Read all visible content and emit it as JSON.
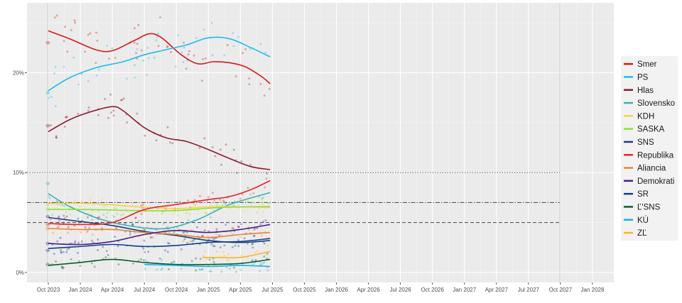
{
  "chart_data": {
    "type": "line",
    "title": "",
    "xlabel": "",
    "ylabel": "",
    "x_ticks": [
      "Oct 2023",
      "Jan 2024",
      "Apr 2024",
      "Jul 2024",
      "Oct 2024",
      "Jan 2025",
      "Apr 2025",
      "Jul 2025",
      "Oct 2025",
      "Jan 2026",
      "Apr 2026",
      "Jul 2026",
      "Oct 2026",
      "Jan 2027",
      "Apr 2027",
      "Jul 2027",
      "Oct 2027",
      "Jan 2028"
    ],
    "x_range": [
      "2023-08",
      "2028-03"
    ],
    "y_ticks": [
      "0%",
      "10%",
      "20%"
    ],
    "y_tick_values": [
      0,
      10,
      20
    ],
    "ylim": [
      -1,
      27
    ],
    "grid": true,
    "legend_position": "right",
    "reference_lines": [
      {
        "value": 10,
        "style": "dotted",
        "color": "#6e6e6e"
      },
      {
        "value": 7,
        "style": "dashdot",
        "color": "#5a5a5a"
      },
      {
        "value": 5,
        "style": "dashed",
        "color": "#5a5a5a"
      }
    ],
    "election_markers": [
      {
        "x": "2023-09-30",
        "value_note": "election"
      },
      {
        "x": "2027-09-30",
        "value_note": "election"
      }
    ],
    "series": [
      {
        "name": "Smer",
        "color": "#d7191c",
        "election_result": 23.0,
        "x": [
          "2023-10-01",
          "2023-12-01",
          "2024-02-15",
          "2024-04-01",
          "2024-06-01",
          "2024-07-15",
          "2024-08-20",
          "2024-10-15",
          "2024-12-01",
          "2025-01-15",
          "2025-03-01",
          "2025-04-15",
          "2025-06-01",
          "2025-06-25"
        ],
        "values": [
          24.2,
          23.4,
          22.3,
          22.2,
          23.2,
          23.9,
          23.5,
          21.8,
          20.9,
          21.1,
          21.0,
          20.6,
          19.6,
          18.9
        ]
      },
      {
        "name": "PS",
        "color": "#1fbce9",
        "election_result": 18.0,
        "x": [
          "2023-10-01",
          "2023-12-01",
          "2024-02-15",
          "2024-05-01",
          "2024-07-01",
          "2024-09-01",
          "2024-11-01",
          "2025-01-01",
          "2025-03-01",
          "2025-05-01",
          "2025-06-25"
        ],
        "values": [
          18.2,
          19.5,
          20.5,
          21.1,
          21.8,
          22.3,
          22.8,
          23.5,
          23.4,
          22.5,
          21.6
        ]
      },
      {
        "name": "Hlas",
        "color": "#8b1a2e",
        "election_result": 14.7,
        "x": [
          "2023-10-01",
          "2023-12-01",
          "2024-02-01",
          "2024-04-01",
          "2024-05-01",
          "2024-07-01",
          "2024-09-01",
          "2024-11-01",
          "2025-01-01",
          "2025-03-01",
          "2025-05-01",
          "2025-06-25"
        ],
        "values": [
          14.1,
          15.3,
          16.1,
          16.6,
          16.2,
          14.5,
          13.5,
          13.1,
          12.3,
          11.4,
          10.6,
          10.3
        ]
      },
      {
        "name": "Slovensko",
        "color": "#3eafb0",
        "election_result": 8.9,
        "x": [
          "2023-10-01",
          "2023-12-01",
          "2024-03-01",
          "2024-06-01",
          "2024-09-01",
          "2024-12-01",
          "2025-03-01",
          "2025-06-25"
        ],
        "values": [
          7.9,
          6.6,
          5.3,
          4.6,
          4.4,
          5.3,
          6.8,
          8.0
        ]
      },
      {
        "name": "KDH",
        "color": "#f9d33c",
        "election_result": 6.8,
        "x": [
          "2023-10-01",
          "2024-02-01",
          "2024-06-01",
          "2024-10-01",
          "2025-02-01",
          "2025-06-25"
        ],
        "values": [
          6.9,
          6.9,
          6.6,
          6.4,
          6.6,
          6.5
        ]
      },
      {
        "name": "SASKA",
        "color": "#8ae234",
        "election_result": 6.3,
        "x": [
          "2023-10-01",
          "2024-02-01",
          "2024-06-01",
          "2024-10-01",
          "2025-02-01",
          "2025-06-25"
        ],
        "values": [
          6.3,
          6.3,
          6.2,
          6.2,
          6.5,
          6.6
        ]
      },
      {
        "name": "SNS",
        "color": "#1f3f7f",
        "election_result": 5.6,
        "x": [
          "2023-10-01",
          "2024-01-01",
          "2024-04-01",
          "2024-07-01",
          "2024-10-01",
          "2025-01-01",
          "2025-04-01",
          "2025-06-25"
        ],
        "values": [
          5.5,
          5.1,
          4.7,
          4.1,
          3.7,
          3.2,
          3.0,
          3.2
        ]
      },
      {
        "name": "Republika",
        "color": "#e8232f",
        "election_result": 4.8,
        "x": [
          "2023-10-01",
          "2024-01-01",
          "2024-04-01",
          "2024-07-01",
          "2024-10-01",
          "2025-01-01",
          "2025-03-01",
          "2025-05-01",
          "2025-06-25"
        ],
        "values": [
          4.9,
          4.8,
          5.0,
          6.3,
          6.8,
          7.3,
          7.6,
          8.3,
          9.2
        ]
      },
      {
        "name": "Aliancia",
        "color": "#e8862f",
        "election_result": 4.4,
        "x": [
          "2023-10-01",
          "2024-01-01",
          "2024-04-01",
          "2024-07-01",
          "2024-10-01",
          "2025-01-01",
          "2025-04-01",
          "2025-06-25"
        ],
        "values": [
          4.4,
          4.3,
          4.3,
          4.0,
          3.8,
          3.5,
          3.8,
          4.0
        ]
      },
      {
        "name": "Demokrati",
        "color": "#4a1a8c",
        "election_result": 2.9,
        "x": [
          "2023-10-01",
          "2024-01-01",
          "2024-04-01",
          "2024-07-01",
          "2024-10-01",
          "2025-01-01",
          "2025-04-01",
          "2025-06-25"
        ],
        "values": [
          2.9,
          2.8,
          3.1,
          3.8,
          4.2,
          4.0,
          4.3,
          4.8
        ]
      },
      {
        "name": "SR",
        "color": "#0d3f8a",
        "election_result": 2.2,
        "x": [
          "2023-10-01",
          "2024-01-01",
          "2024-04-01",
          "2024-07-01",
          "2024-10-01",
          "2025-01-01",
          "2025-04-01",
          "2025-06-25"
        ],
        "values": [
          2.4,
          2.6,
          2.8,
          2.6,
          2.7,
          3.0,
          3.1,
          3.4
        ]
      },
      {
        "name": "Ľ'SNS",
        "color": "#0a5c2a",
        "election_result": 0.8,
        "x": [
          "2023-10-01",
          "2024-01-01",
          "2024-04-01",
          "2024-07-01",
          "2024-10-01",
          "2025-01-01",
          "2025-04-01",
          "2025-06-25"
        ],
        "values": [
          0.7,
          1.0,
          1.3,
          1.0,
          0.8,
          0.8,
          0.9,
          1.3
        ]
      },
      {
        "name": "KÚ",
        "color": "#1faee0",
        "election_result": null,
        "x": [
          "2024-07-01",
          "2024-10-01",
          "2025-01-01",
          "2025-04-01",
          "2025-06-25"
        ],
        "values": [
          0.8,
          0.7,
          0.6,
          0.7,
          0.6
        ]
      },
      {
        "name": "ZĽ",
        "color": "#f7b52a",
        "election_result": null,
        "x": [
          "2024-12-15",
          "2025-02-01",
          "2025-04-01",
          "2025-06-25"
        ],
        "values": [
          1.5,
          1.5,
          1.5,
          2.1
        ]
      }
    ]
  }
}
